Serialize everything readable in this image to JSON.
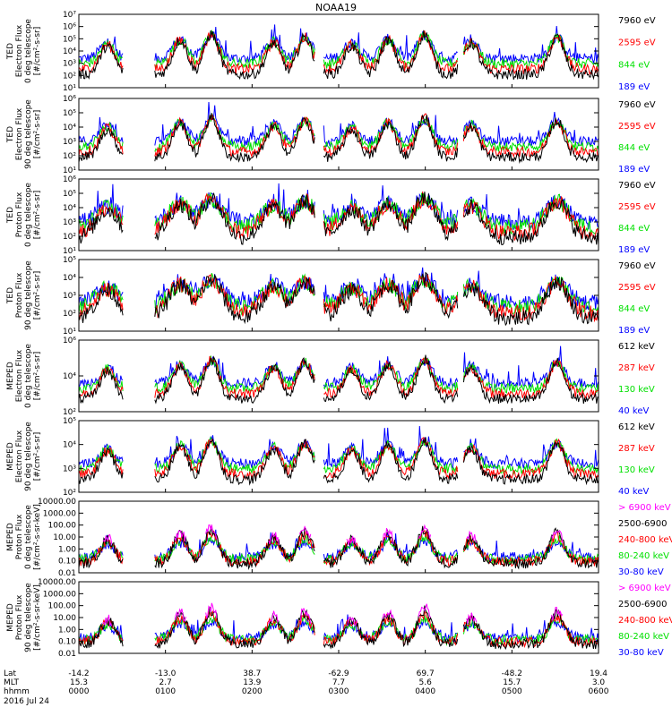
{
  "title": "NOAA19",
  "colors": {
    "blue": "#0000ff",
    "red": "#ff0000",
    "green": "#00e000",
    "black": "#000000",
    "magenta": "#ff00ff"
  },
  "chart_data": [
    {
      "type": "scatter",
      "id": "ted-e-0",
      "ylabel": [
        "TED",
        "Electron Flux",
        "0 deg telescope",
        "[#/cm²-s-sr]"
      ],
      "yscale": "log",
      "ylim_exp": [
        1,
        7
      ],
      "ytick_labels": [
        "10¹",
        "10²",
        "10³",
        "10⁴",
        "10⁵",
        "10⁶",
        "10⁷"
      ],
      "legend": [
        {
          "label": "7960 eV",
          "color": "black"
        },
        {
          "label": "2595 eV",
          "color": "red"
        },
        {
          "label": "844 eV",
          "color": "green"
        },
        {
          "label": "189 eV",
          "color": "blue"
        }
      ]
    },
    {
      "type": "scatter",
      "id": "ted-e-90",
      "ylabel": [
        "TED",
        "Electron Flux",
        "90 deg telescope",
        "[#/cm²-s-sr]"
      ],
      "yscale": "log",
      "ylim_exp": [
        1,
        6
      ],
      "ytick_labels": [
        "10¹",
        "10²",
        "10³",
        "10⁴",
        "10⁵",
        "10⁶"
      ],
      "legend": [
        {
          "label": "7960 eV",
          "color": "black"
        },
        {
          "label": "2595 eV",
          "color": "red"
        },
        {
          "label": "844 eV",
          "color": "green"
        },
        {
          "label": "189 eV",
          "color": "blue"
        }
      ]
    },
    {
      "type": "scatter",
      "id": "ted-p-0",
      "ylabel": [
        "TED",
        "Proton Flux",
        "0 deg telescope",
        "[#/cm²-s-sr]"
      ],
      "yscale": "log",
      "ylim_exp": [
        1,
        6
      ],
      "ytick_labels": [
        "10¹",
        "10²",
        "10³",
        "10⁴",
        "10⁵",
        "10⁶"
      ],
      "legend": [
        {
          "label": "7960 eV",
          "color": "black"
        },
        {
          "label": "2595 eV",
          "color": "red"
        },
        {
          "label": "844 eV",
          "color": "green"
        },
        {
          "label": "189 eV",
          "color": "blue"
        }
      ]
    },
    {
      "type": "scatter",
      "id": "ted-p-90",
      "ylabel": [
        "TED",
        "Proton Flux",
        "90 deg telescope",
        "[#/cm²-s-sr]"
      ],
      "yscale": "log",
      "ylim_exp": [
        1,
        5
      ],
      "ytick_labels": [
        "10¹",
        "10²",
        "10³",
        "10⁴",
        "10⁵"
      ],
      "legend": [
        {
          "label": "7960 eV",
          "color": "black"
        },
        {
          "label": "2595 eV",
          "color": "red"
        },
        {
          "label": "844 eV",
          "color": "green"
        },
        {
          "label": "189 eV",
          "color": "blue"
        }
      ]
    },
    {
      "type": "scatter",
      "id": "meped-e-0",
      "ylabel": [
        "MEPED",
        "Electron Flux",
        "0 deg telescope",
        "[#/cm²-s-sr]"
      ],
      "yscale": "log",
      "ylim_exp": [
        2,
        6
      ],
      "ytick_labels": [
        "10²",
        "10⁴",
        "10⁶"
      ],
      "legend": [
        {
          "label": "612 keV",
          "color": "black"
        },
        {
          "label": "287 keV",
          "color": "red"
        },
        {
          "label": "130 keV",
          "color": "green"
        },
        {
          "label": "40 keV",
          "color": "blue"
        }
      ]
    },
    {
      "type": "scatter",
      "id": "meped-e-90",
      "ylabel": [
        "MEPED",
        "Electron Flux",
        "90 deg telescope",
        "[#/cm²-s-sr]"
      ],
      "yscale": "log",
      "ylim_exp": [
        2,
        5
      ],
      "ytick_labels": [
        "10²",
        "10³",
        "10⁴",
        "10⁵"
      ],
      "legend": [
        {
          "label": "612 keV",
          "color": "black"
        },
        {
          "label": "287 keV",
          "color": "red"
        },
        {
          "label": "130 keV",
          "color": "green"
        },
        {
          "label": "40 keV",
          "color": "blue"
        }
      ]
    },
    {
      "type": "scatter",
      "id": "meped-p-0",
      "ylabel": [
        "MEPED",
        "Proton Flux",
        "0 deg telescope",
        "[#/cm²-s-sr-keV]"
      ],
      "yscale": "log",
      "ylim_exp": [
        -2,
        4
      ],
      "ytick_labels": [
        "0.01",
        "0.10",
        "1.00",
        "10.00",
        "100.00",
        "1000.00",
        "10000.00"
      ],
      "legend": [
        {
          "label": "> 6900 keV",
          "color": "magenta"
        },
        {
          "label": "2500-6900",
          "color": "black"
        },
        {
          "label": "240-800 keV",
          "color": "red"
        },
        {
          "label": "80-240 keV",
          "color": "green"
        },
        {
          "label": "30-80 keV",
          "color": "blue"
        }
      ]
    },
    {
      "type": "scatter",
      "id": "meped-p-90",
      "ylabel": [
        "MEPED",
        "Proton Flux",
        "90 deg telescope",
        "[#/cm²-s-sr-keV]"
      ],
      "yscale": "log",
      "ylim_exp": [
        -2,
        4
      ],
      "ytick_labels": [
        "0.01",
        "0.10",
        "1.00",
        "10.00",
        "100.00",
        "1000.00",
        "10000.00"
      ],
      "legend": [
        {
          "label": "> 6900 keV",
          "color": "magenta"
        },
        {
          "label": "2500-6900",
          "color": "black"
        },
        {
          "label": "240-800 keV",
          "color": "red"
        },
        {
          "label": "80-240 keV",
          "color": "green"
        },
        {
          "label": "30-80 keV",
          "color": "blue"
        }
      ]
    }
  ],
  "xaxis": {
    "row_labels": [
      "Lat",
      "MLT",
      "hhmm"
    ],
    "ticks": [
      {
        "lat": "-14.2",
        "mlt": "15.3",
        "hhmm": "0000"
      },
      {
        "lat": "-13.0",
        "mlt": "2.7",
        "hhmm": "0100"
      },
      {
        "lat": "38.7",
        "mlt": "13.9",
        "hhmm": "0200"
      },
      {
        "lat": "-62.9",
        "mlt": "7.7",
        "hhmm": "0300"
      },
      {
        "lat": "69.7",
        "mlt": "5.6",
        "hhmm": "0400"
      },
      {
        "lat": "-48.2",
        "mlt": "15.7",
        "hhmm": "0500"
      },
      {
        "lat": "19.4",
        "mlt": "3.0",
        "hhmm": "0600"
      }
    ],
    "date": "2016 Jul 24"
  }
}
